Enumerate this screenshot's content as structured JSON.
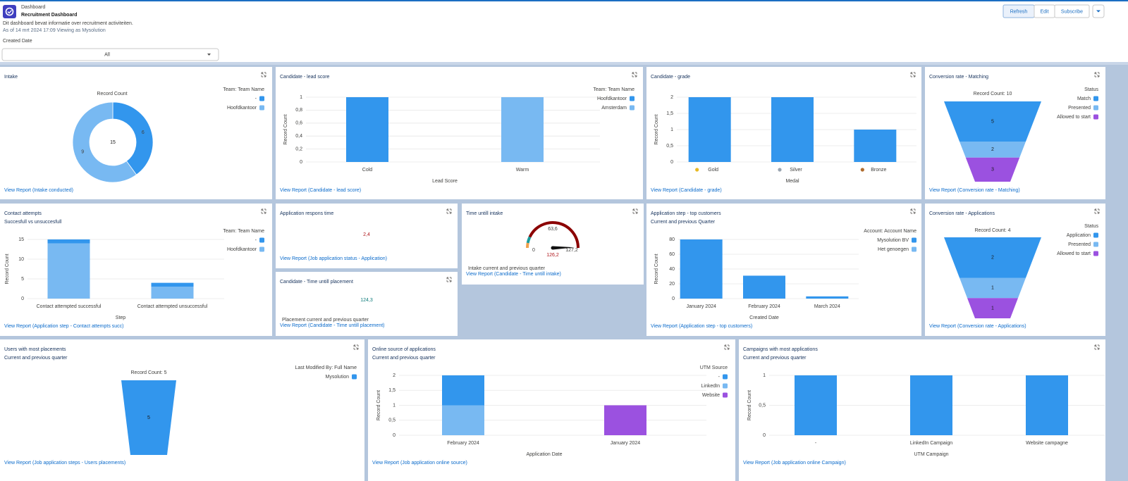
{
  "header": {
    "breadcrumb": "Dashboard",
    "title": "Recruitment Dashboard",
    "description": "Dit dashboard bevat informatie over recruitment activiteiten.",
    "status": "As of 14 mrt 2024 17:09 Viewing as Mysolution",
    "buttons": [
      "Refresh",
      "Edit",
      "Subscribe"
    ]
  },
  "filter": {
    "label": "Created Date",
    "value": "All"
  },
  "widgets": [
    {
      "title": "Intake",
      "link": "View Report (Intake conducted)",
      "chart": {
        "type": "donut",
        "label": "Record Count",
        "total": 15,
        "legend_title": "Team: Team Name",
        "categories": [
          "-",
          "Hoofdkantoor"
        ],
        "colors": [
          "#3296ed",
          "#78b9f2"
        ],
        "values": [
          6,
          9
        ]
      }
    },
    {
      "title": "Candidate - lead score",
      "link": "View Report (Candidate - lead score)",
      "chart": {
        "type": "bar",
        "categories": [
          "Cold",
          "Warm"
        ],
        "series": [
          {
            "name": "Hoofdkantoor",
            "color": "#3296ed",
            "values": [
              1,
              null
            ]
          },
          {
            "name": "Amsterdam",
            "color": "#78b9f2",
            "values": [
              null,
              1
            ]
          }
        ],
        "legend_title": "Team: Team Name",
        "x_label": "Lead Score",
        "y_label": "Record Count",
        "ylim": [
          0,
          1
        ],
        "yticks": [
          0,
          {
            "value": 0.2,
            "label": "0,2"
          },
          {
            "value": 0.4,
            "label": "0,4"
          },
          {
            "value": 0.6,
            "label": "0,6"
          },
          {
            "value": 0.8,
            "label": "0,8"
          },
          1
        ],
        "grid": true
      }
    },
    {
      "title": "Candidate - grade",
      "link": "View Report (Candidate - grade)",
      "chart": {
        "type": "bar",
        "categories": [
          "Gold",
          "Silver",
          "Bronze"
        ],
        "values": [
          2,
          2,
          1
        ],
        "color": "#3296ed",
        "x_label": "Medal",
        "y_label": "Record Count",
        "ylim": [
          0,
          2
        ],
        "yticks": [
          0,
          {
            "value": 0.5,
            "label": "0,5"
          },
          1,
          {
            "value": 1.5,
            "label": "1,5"
          },
          2
        ],
        "grid": true
      }
    },
    {
      "title": "Conversion rate - Matching",
      "link": "View Report (Conversion rate - Matching)",
      "chart": {
        "type": "funnel",
        "label": "Record Count: 10",
        "legend_title": "Status",
        "categories": [
          "Match",
          "Presented",
          "Allowed to start"
        ],
        "colors": [
          "#3296ed",
          "#78b9f2",
          "#9b51e0"
        ],
        "values": [
          5,
          2,
          3
        ]
      }
    },
    {
      "title": "Contact attempts",
      "subtitle": "Succesfull vs unsuccesfull",
      "link": "View Report (Application step - Contact attempts succ)",
      "chart": {
        "type": "bar",
        "stacked": true,
        "categories": [
          "Contact attempted successful",
          "Contact attempted unsuccessful"
        ],
        "series": [
          {
            "name": "-",
            "color": "#3296ed",
            "values": [
              1,
              1
            ]
          },
          {
            "name": "Hoofdkantoor",
            "color": "#78b9f2",
            "values": [
              14,
              3
            ]
          }
        ],
        "legend_title": "Team: Team Name",
        "x_label": "Step",
        "y_label": "Record Count",
        "ylim": [
          0,
          15
        ],
        "yticks": [
          0,
          5,
          10,
          15
        ],
        "grid": true
      }
    },
    {
      "title": "Application respons time",
      "link": "View Report (Job application status - Application)",
      "chart": {
        "type": "metric",
        "value": 2.4,
        "value_label": "2,4",
        "color": "#b0191e"
      }
    },
    {
      "title": "Candidate - Time untill placement",
      "link": "View Report (Candidate - Time untill placement)",
      "chart": {
        "type": "metric",
        "value": 124.3,
        "value_label": "124,3",
        "color": "#0e7c7b",
        "footer": "Placement current and previous quarter"
      }
    },
    {
      "title": "Time untill intake",
      "link": "View Report (Candidate - Time untill intake)",
      "chart": {
        "type": "gauge",
        "range": [
          0,
          127.2
        ],
        "ticks": [
          0,
          {
            "value": 63.6,
            "label": "63,6"
          },
          {
            "value": 127.2,
            "label": "127,2"
          }
        ],
        "bands": [
          {
            "to": 8,
            "color": "#f0a04b"
          },
          {
            "to": 18,
            "color": "#1a9c9c"
          },
          {
            "to": 127.2,
            "color": "#8b0000"
          }
        ],
        "value": 126.2,
        "value_label": "126,2",
        "footer": "Intake current and previous quarter"
      }
    },
    {
      "title": "Application step - top customers",
      "subtitle": "Current and previous Quarter",
      "link": "View Report (Application step - top customers)",
      "chart": {
        "type": "bar",
        "categories": [
          "January 2024",
          "February 2024",
          "March 2024"
        ],
        "series": [
          {
            "name": "Mysolution BV",
            "color": "#3296ed",
            "values": [
              80,
              31,
              3
            ]
          },
          {
            "name": "Het genoegen",
            "color": "#78b9f2",
            "values": [
              null,
              null,
              null
            ]
          }
        ],
        "legend_title": "Account: Account Name",
        "x_label": "Created Date",
        "y_label": "Record Count",
        "ylim": [
          0,
          80
        ],
        "yticks": [
          0,
          20,
          40,
          60,
          80
        ],
        "grid": true
      }
    },
    {
      "title": "Conversion rate - Applications",
      "link": "View Report (Conversion rate - Applications)",
      "chart": {
        "type": "funnel",
        "label": "Record Count: 4",
        "legend_title": "Status",
        "categories": [
          "Application",
          "Presented",
          "Allowed to start"
        ],
        "colors": [
          "#3296ed",
          "#78b9f2",
          "#9b51e0"
        ],
        "values": [
          2,
          1,
          1
        ]
      }
    },
    {
      "title": "Users with most placements",
      "subtitle": "Current and previous quarter",
      "link": "View Report (Job application steps - Users placements)",
      "chart": {
        "type": "funnel",
        "label": "Record Count: 5",
        "legend_title": "Last Modified By: Full Name",
        "categories": [
          "Mysolution"
        ],
        "colors": [
          "#3296ed"
        ],
        "values": [
          5
        ]
      }
    },
    {
      "title": "Online source of applications",
      "subtitle": "Current and previous quarter",
      "link": "View Report (Job application online source)",
      "chart": {
        "type": "bar",
        "stacked": true,
        "categories": [
          "February 2024",
          "January 2024"
        ],
        "series": [
          {
            "name": "-",
            "color": "#3296ed",
            "values": [
              1,
              null
            ]
          },
          {
            "name": "LinkedIn",
            "color": "#78b9f2",
            "values": [
              1,
              null
            ]
          },
          {
            "name": "Website",
            "color": "#9b51e0",
            "values": [
              null,
              1
            ]
          }
        ],
        "legend_title": "UTM Source",
        "x_label": "Application Date",
        "y_label": "Record Count",
        "ylim": [
          0,
          2
        ],
        "yticks": [
          0,
          {
            "value": 0.5,
            "label": "0,5"
          },
          1,
          {
            "value": 1.5,
            "label": "1,5"
          },
          2
        ],
        "grid": true
      }
    },
    {
      "title": "Campaigns with most applications",
      "subtitle": "Current and previous quarter",
      "link": "View Report (Job application online Campaign)",
      "chart": {
        "type": "bar",
        "categories": [
          "-",
          "LinkedIn Campaign",
          "Website campagne"
        ],
        "values": [
          1,
          1,
          1
        ],
        "color": "#3296ed",
        "x_label": "UTM Campaign",
        "y_label": "Record Count",
        "ylim": [
          0,
          1
        ],
        "yticks": [
          0,
          {
            "value": 0.5,
            "label": "0,5"
          },
          1
        ],
        "grid": true
      }
    }
  ]
}
